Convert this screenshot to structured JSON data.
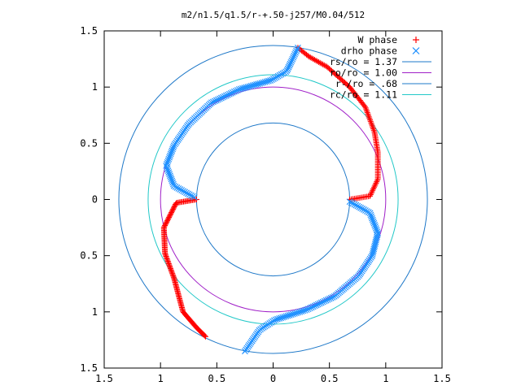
{
  "chart_data": {
    "type": "scatter",
    "title": "m2/n1.5/q1.5/r-+.50-j257/M0.04/512",
    "xlim": [
      -1.5,
      1.5
    ],
    "ylim": [
      -1.5,
      1.5
    ],
    "x_ticks": [
      -1.5,
      -1,
      -0.5,
      0,
      0.5,
      1,
      1.5
    ],
    "y_ticks": [
      -1.5,
      -1,
      -0.5,
      0,
      0.5,
      1,
      1.5
    ],
    "x_tick_labels": [
      "1.5",
      "1",
      "0.5",
      "0",
      "0.5",
      "1",
      "1.5"
    ],
    "y_tick_labels": [
      "1.5",
      "1",
      "0.5",
      "0",
      "0.5",
      "1",
      "1.5"
    ],
    "legend_position": "top-right",
    "grid": false,
    "series": [
      {
        "name": "W phase",
        "marker": "+",
        "color": "#ff0000",
        "branches": [
          {
            "points": [
              [
                0.68,
                0
              ],
              [
                0.86,
                0.03
              ],
              [
                0.93,
                0.18
              ],
              [
                0.93,
                0.42
              ],
              [
                0.9,
                0.6
              ],
              [
                0.82,
                0.82
              ],
              [
                0.68,
                1.0
              ],
              [
                0.48,
                1.18
              ],
              [
                0.32,
                1.27
              ],
              [
                0.22,
                1.35
              ]
            ]
          },
          {
            "points": [
              [
                -0.68,
                0
              ],
              [
                -0.86,
                -0.03
              ],
              [
                -0.97,
                -0.25
              ],
              [
                -0.96,
                -0.48
              ],
              [
                -0.88,
                -0.7
              ],
              [
                -0.8,
                -1.0
              ],
              [
                -0.68,
                -1.14
              ],
              [
                -0.6,
                -1.22
              ]
            ]
          }
        ]
      },
      {
        "name": "drho phase",
        "marker": "×",
        "color": "#1e90ff",
        "branches": [
          {
            "points": [
              [
                0.22,
                1.35
              ],
              [
                0.12,
                1.14
              ],
              [
                -0.02,
                1.06
              ],
              [
                -0.3,
                0.98
              ],
              [
                -0.55,
                0.86
              ],
              [
                -0.75,
                0.67
              ],
              [
                -0.88,
                0.48
              ],
              [
                -0.95,
                0.3
              ],
              [
                -0.88,
                0.12
              ],
              [
                -0.7,
                0.02
              ]
            ]
          },
          {
            "points": [
              [
                -0.25,
                -1.35
              ],
              [
                -0.12,
                -1.16
              ],
              [
                0.02,
                -1.07
              ],
              [
                0.3,
                -0.98
              ],
              [
                0.55,
                -0.86
              ],
              [
                0.76,
                -0.68
              ],
              [
                0.88,
                -0.5
              ],
              [
                0.93,
                -0.3
              ],
              [
                0.86,
                -0.12
              ],
              [
                0.68,
                -0.02
              ]
            ]
          }
        ]
      },
      {
        "name": "rs/ro = 1.37",
        "type": "circle",
        "radius": 1.37,
        "color": "#1e78c8"
      },
      {
        "name": "ro/ro = 1.00",
        "type": "circle",
        "radius": 1.0,
        "color": "#a020c8"
      },
      {
        "name": "r-/ro = .68",
        "type": "circle",
        "radius": 0.68,
        "color": "#1e78c8"
      },
      {
        "name": "rc/ro = 1.11",
        "type": "circle",
        "radius": 1.11,
        "color": "#22c8c8"
      }
    ]
  }
}
